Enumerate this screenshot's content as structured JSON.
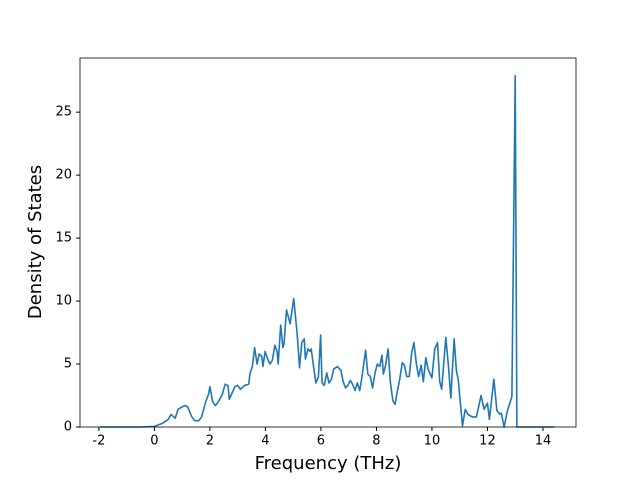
{
  "chart_data": {
    "type": "line",
    "xlabel": "Frequency (THz)",
    "ylabel": "Density of States",
    "color": "#1f77b4",
    "x": [
      -1.95,
      -0.5,
      0,
      0.3,
      0.5,
      0.6,
      0.75,
      0.85,
      1.0,
      1.1,
      1.2,
      1.35,
      1.45,
      1.6,
      1.7,
      1.85,
      1.95,
      2.0,
      2.1,
      2.2,
      2.3,
      2.45,
      2.55,
      2.65,
      2.7,
      2.8,
      2.9,
      3.0,
      3.1,
      3.25,
      3.4,
      3.44,
      3.53,
      3.61,
      3.7,
      3.78,
      3.87,
      3.91,
      3.99,
      4.08,
      4.16,
      4.25,
      4.34,
      4.42,
      4.46,
      4.55,
      4.63,
      4.67,
      4.76,
      4.89,
      5.02,
      5.14,
      5.23,
      5.31,
      5.4,
      5.44,
      5.53,
      5.61,
      5.65,
      5.74,
      5.82,
      5.91,
      5.99,
      6.04,
      6.12,
      6.21,
      6.29,
      6.38,
      6.46,
      6.59,
      6.72,
      6.8,
      6.89,
      6.97,
      7.06,
      7.14,
      7.23,
      7.31,
      7.4,
      7.48,
      7.61,
      7.69,
      7.78,
      7.86,
      7.95,
      8.03,
      8.12,
      8.2,
      8.25,
      8.33,
      8.42,
      8.5,
      8.59,
      8.67,
      8.75,
      8.84,
      8.93,
      9.01,
      9.09,
      9.18,
      9.27,
      9.35,
      9.44,
      9.52,
      9.61,
      9.69,
      9.78,
      9.86,
      10.0,
      10.1,
      10.2,
      10.28,
      10.35,
      10.5,
      10.6,
      10.68,
      10.8,
      10.88,
      10.95,
      11.02,
      11.1,
      11.2,
      11.3,
      11.45,
      11.6,
      11.77,
      11.88,
      12.0,
      12.07,
      12.23,
      12.34,
      12.45,
      12.5,
      12.6,
      12.72,
      12.88,
      13.0,
      13.06,
      14.4
    ],
    "values": [
      0,
      0,
      0.05,
      0.3,
      0.6,
      1.0,
      0.7,
      1.4,
      1.6,
      1.7,
      1.6,
      0.8,
      0.5,
      0.5,
      0.8,
      2.0,
      2.6,
      3.2,
      2.0,
      1.7,
      2.0,
      2.6,
      3.4,
      3.3,
      2.2,
      2.7,
      3.2,
      3.3,
      3.0,
      3.3,
      3.4,
      4.2,
      4.8,
      6.3,
      5.0,
      5.8,
      5.6,
      4.8,
      6.0,
      5.4,
      5.0,
      5.3,
      6.5,
      6.0,
      5.0,
      8.1,
      6.3,
      6.6,
      9.3,
      8.2,
      10.2,
      7.5,
      4.7,
      6.7,
      7.0,
      5.4,
      6.2,
      6.0,
      6.2,
      4.7,
      3.5,
      4.0,
      7.3,
      3.5,
      3.3,
      4.3,
      3.5,
      3.8,
      4.6,
      4.8,
      4.5,
      3.6,
      3.1,
      3.3,
      3.7,
      3.4,
      2.9,
      3.5,
      2.9,
      4.0,
      6.1,
      4.2,
      4.0,
      3.1,
      4.3,
      5.0,
      4.8,
      5.7,
      4.2,
      4.9,
      6.2,
      3.6,
      2.1,
      1.8,
      2.8,
      3.8,
      5.1,
      4.9,
      4.0,
      4.0,
      5.9,
      6.7,
      5.0,
      4.0,
      4.9,
      3.6,
      5.5,
      4.6,
      3.9,
      6.2,
      6.7,
      3.6,
      3.0,
      7.1,
      4.7,
      2.3,
      7.0,
      4.5,
      3.7,
      2.0,
      0.1,
      1.4,
      1.0,
      0.8,
      0.8,
      2.5,
      1.4,
      1.9,
      0.6,
      3.8,
      1.3,
      1.0,
      1.1,
      0.0,
      1.3,
      2.4,
      27.9,
      0,
      0
    ],
    "xlim": [
      -2.68,
      15.19
    ],
    "ylim": [
      0,
      29.3
    ],
    "xticks": [
      -2,
      0,
      2,
      4,
      6,
      8,
      10,
      12,
      14
    ],
    "yticks": [
      0,
      5,
      10,
      15,
      20,
      25
    ]
  }
}
